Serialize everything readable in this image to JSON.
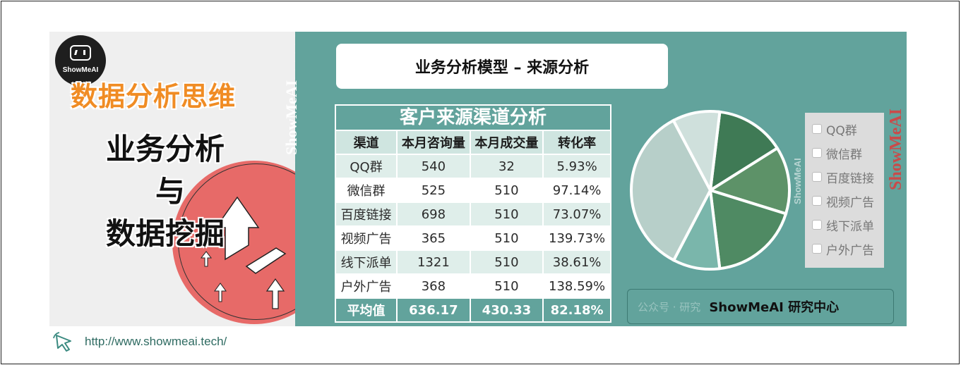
{
  "logo": {
    "brand": "ShowMeAI"
  },
  "left": {
    "headline": "数据分析思维",
    "subtitle_line1": "业务分析",
    "subtitle_line2": "与",
    "subtitle_line3": "数据挖掘",
    "url": "http://www.showmeai.tech/"
  },
  "title_box": {
    "text": "业务分析模型 – 来源分析"
  },
  "table": {
    "caption": "客户来源渠道分析",
    "headers": [
      "渠道",
      "本月咨询量",
      "本月成交量",
      "转化率"
    ],
    "rows": [
      [
        "QQ群",
        "540",
        "32",
        "5.93%"
      ],
      [
        "微信群",
        "525",
        "510",
        "97.14%"
      ],
      [
        "百度链接",
        "698",
        "510",
        "73.07%"
      ],
      [
        "视频广告",
        "365",
        "510",
        "139.73%"
      ],
      [
        "线下派单",
        "1321",
        "510",
        "38.61%"
      ],
      [
        "户外广告",
        "368",
        "510",
        "138.59%"
      ]
    ],
    "average": [
      "平均值",
      "636.17",
      "430.33",
      "82.18%"
    ]
  },
  "chart_data": {
    "type": "pie",
    "categories": [
      "QQ群",
      "微信群",
      "百度链接",
      "视频广告",
      "线下派单",
      "户外广告"
    ],
    "values": [
      540,
      525,
      698,
      365,
      1321,
      368
    ],
    "colors": [
      "#3f7a55",
      "#5d9268",
      "#4f8a63",
      "#7ab6ab",
      "#b7cfc9",
      "#cfe0dc"
    ]
  },
  "legend": {
    "items": [
      "QQ群",
      "微信群",
      "百度链接",
      "视频广告",
      "线下派单",
      "户外广告"
    ]
  },
  "watermarks": {
    "side": "ShowMeAI",
    "right": "ShowMeAI",
    "left": "ShowMeAI"
  },
  "footer": {
    "faded": "公众号 · 研究",
    "brand": "ShowMeAI 研究中心"
  }
}
